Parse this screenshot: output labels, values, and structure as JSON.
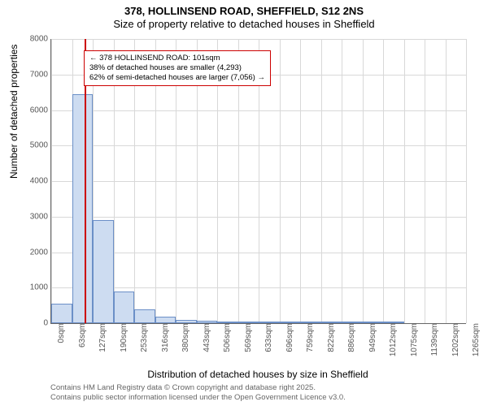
{
  "title": {
    "main": "378, HOLLINSEND ROAD, SHEFFIELD, S12 2NS",
    "sub": "Size of property relative to detached houses in Sheffield"
  },
  "chart": {
    "type": "histogram",
    "ylabel": "Number of detached properties",
    "xlabel": "Distribution of detached houses by size in Sheffield",
    "ylim": [
      0,
      8000
    ],
    "ytick_step": 1000,
    "yticks": [
      0,
      1000,
      2000,
      3000,
      4000,
      5000,
      6000,
      7000,
      8000
    ],
    "xtick_labels": [
      "0sqm",
      "63sqm",
      "127sqm",
      "190sqm",
      "253sqm",
      "316sqm",
      "380sqm",
      "443sqm",
      "506sqm",
      "569sqm",
      "633sqm",
      "696sqm",
      "759sqm",
      "822sqm",
      "886sqm",
      "949sqm",
      "1012sqm",
      "1075sqm",
      "1139sqm",
      "1202sqm",
      "1265sqm"
    ],
    "bars": [
      550,
      6450,
      2900,
      900,
      400,
      180,
      100,
      65,
      45,
      25,
      20,
      15,
      10,
      8,
      6,
      4,
      4,
      0,
      0,
      0
    ],
    "bar_fill": "#cddcf1",
    "bar_border": "#6b8fc7",
    "background_color": "#ffffff",
    "grid_color": "#d8d8d8",
    "axis_color": "#666666",
    "tick_font_size": 10,
    "label_font_size": 12,
    "title_font_size": 13
  },
  "reference_line": {
    "value_sqm": 101,
    "color": "#cc0000"
  },
  "callout": {
    "border_color": "#cc0000",
    "line1": "← 378 HOLLINSEND ROAD: 101sqm",
    "line2": "38% of detached houses are smaller (4,293)",
    "line3": "62% of semi-detached houses are larger (7,056) →"
  },
  "attribution": {
    "line1": "Contains HM Land Registry data © Crown copyright and database right 2025.",
    "line2": "Contains public sector information licensed under the Open Government Licence v3.0."
  }
}
